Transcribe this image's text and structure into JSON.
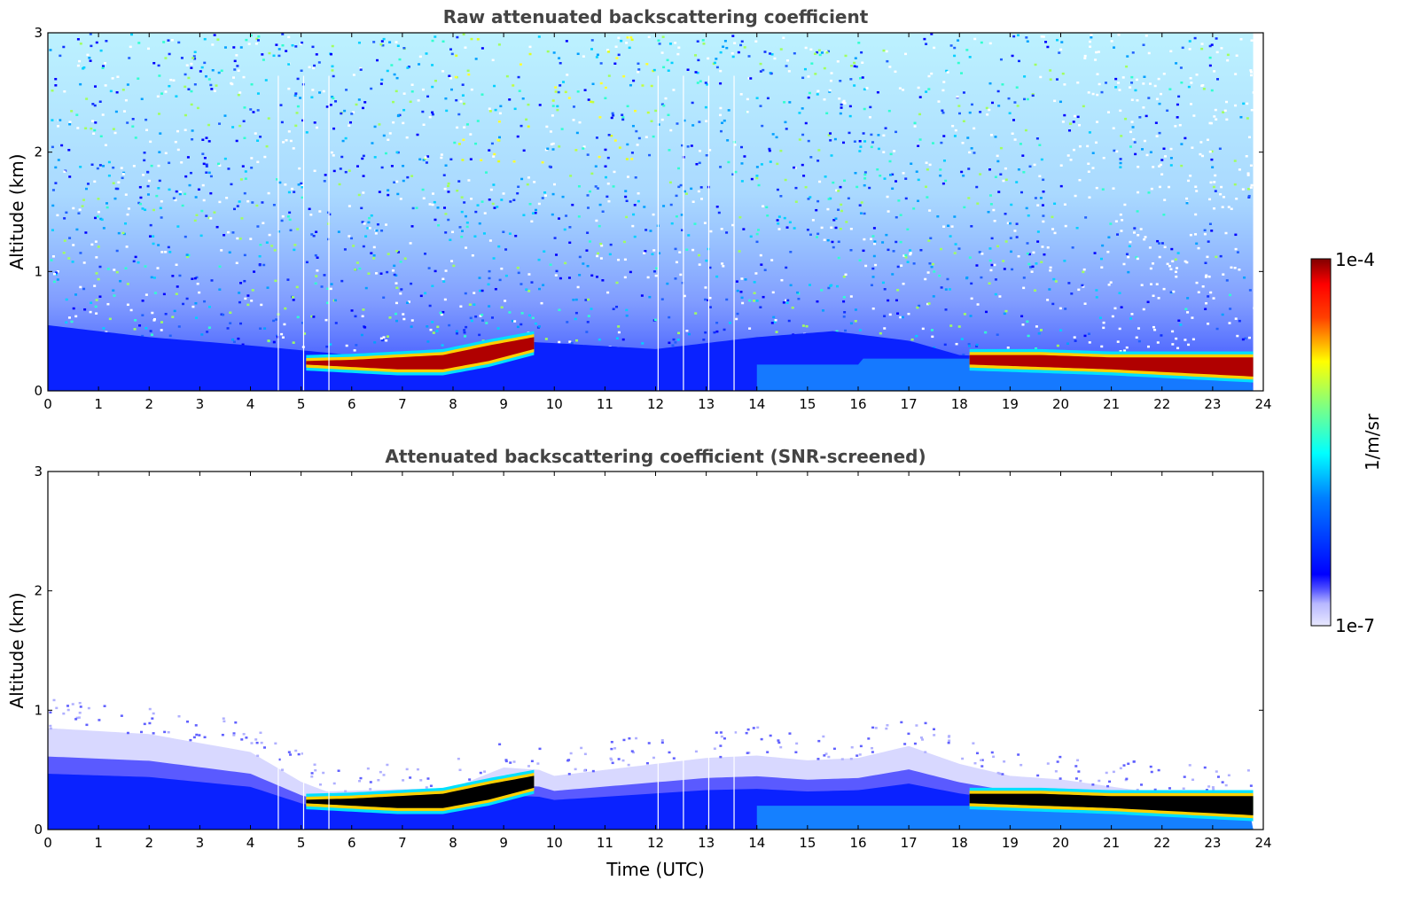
{
  "colors": {
    "jet_low": "#0000ff",
    "jet_mid": "#00ffff",
    "jet_high": "#ffff00",
    "jet_max": "#800000",
    "faint": "#e6e6ff",
    "saturated_screened": "#000000",
    "title": "#444444"
  },
  "chart_data": [
    {
      "type": "heatmap",
      "title": "Raw attenuated backscattering coefficient",
      "xlabel": "",
      "ylabel": "Altitude (km)",
      "xlim": [
        0,
        24
      ],
      "ylim": [
        0,
        3
      ],
      "xticks": [
        "0",
        "1",
        "2",
        "3",
        "4",
        "5",
        "6",
        "7",
        "8",
        "9",
        "10",
        "11",
        "12",
        "13",
        "14",
        "15",
        "16",
        "17",
        "18",
        "19",
        "20",
        "21",
        "22",
        "23",
        "24"
      ],
      "yticks": [
        "0",
        "1",
        "2",
        "3"
      ],
      "data_end_hour": 23.8,
      "gap_times_utc": [
        4.55,
        5.05,
        5.55,
        12.05,
        12.55,
        13.05,
        13.55
      ],
      "boundary_layer_top_km": [
        [
          0,
          0.55
        ],
        [
          2,
          0.45
        ],
        [
          4,
          0.38
        ],
        [
          6,
          0.3
        ],
        [
          8,
          0.35
        ],
        [
          9,
          0.42
        ],
        [
          10,
          0.4
        ],
        [
          12,
          0.35
        ],
        [
          14,
          0.45
        ],
        [
          15.5,
          0.5
        ],
        [
          17,
          0.42
        ],
        [
          18,
          0.3
        ],
        [
          19,
          0.28
        ],
        [
          24,
          0.28
        ]
      ],
      "aerosol_layers": [
        {
          "t": [
            5.1,
            9.6
          ],
          "base_km": [
            0.22,
            0.2,
            0.18,
            0.18,
            0.25,
            0.35
          ],
          "top_km": [
            0.25,
            0.26,
            0.28,
            0.3,
            0.38,
            0.45
          ]
        },
        {
          "t": [
            18.2,
            23.8
          ],
          "base_km": [
            0.22,
            0.2,
            0.18,
            0.15,
            0.12
          ],
          "top_km": [
            0.3,
            0.3,
            0.28,
            0.28,
            0.28
          ]
        }
      ]
    },
    {
      "type": "heatmap",
      "title": "Attenuated backscattering coefficient (SNR-screened)",
      "xlabel": "Time (UTC)",
      "ylabel": "Altitude (km)",
      "xlim": [
        0,
        24
      ],
      "ylim": [
        0,
        3
      ],
      "xticks": [
        "0",
        "1",
        "2",
        "3",
        "4",
        "5",
        "6",
        "7",
        "8",
        "9",
        "10",
        "11",
        "12",
        "13",
        "14",
        "15",
        "16",
        "17",
        "18",
        "19",
        "20",
        "21",
        "22",
        "23",
        "24"
      ],
      "yticks": [
        "0",
        "1",
        "2",
        "3"
      ],
      "data_end_hour": 23.8,
      "gap_times_utc": [
        4.55,
        5.05,
        5.55,
        12.05,
        12.55,
        13.05,
        13.55
      ],
      "residual_layer_top_km": [
        [
          0,
          0.85
        ],
        [
          2,
          0.8
        ],
        [
          4,
          0.65
        ],
        [
          5,
          0.4
        ],
        [
          5.5,
          0.32
        ],
        [
          8,
          0.35
        ],
        [
          9,
          0.52
        ],
        [
          9.7,
          0.5
        ],
        [
          10,
          0.45
        ],
        [
          11,
          0.5
        ],
        [
          12,
          0.55
        ],
        [
          13,
          0.6
        ],
        [
          14,
          0.62
        ],
        [
          15,
          0.58
        ],
        [
          16,
          0.6
        ],
        [
          17,
          0.7
        ],
        [
          18,
          0.55
        ],
        [
          19,
          0.45
        ],
        [
          20,
          0.42
        ],
        [
          22,
          0.3
        ],
        [
          24,
          0.3
        ]
      ],
      "aerosol_layers": [
        {
          "t": [
            5.1,
            9.6
          ],
          "base_km": [
            0.22,
            0.2,
            0.18,
            0.18,
            0.25,
            0.35
          ],
          "top_km": [
            0.25,
            0.26,
            0.28,
            0.3,
            0.38,
            0.45
          ]
        },
        {
          "t": [
            18.2,
            23.8
          ],
          "base_km": [
            0.22,
            0.2,
            0.18,
            0.15,
            0.12
          ],
          "top_km": [
            0.3,
            0.3,
            0.28,
            0.28,
            0.28
          ]
        }
      ]
    }
  ],
  "colorbar": {
    "label": "1/m/sr",
    "max_label": "1e-4",
    "min_label": "1e-7"
  }
}
